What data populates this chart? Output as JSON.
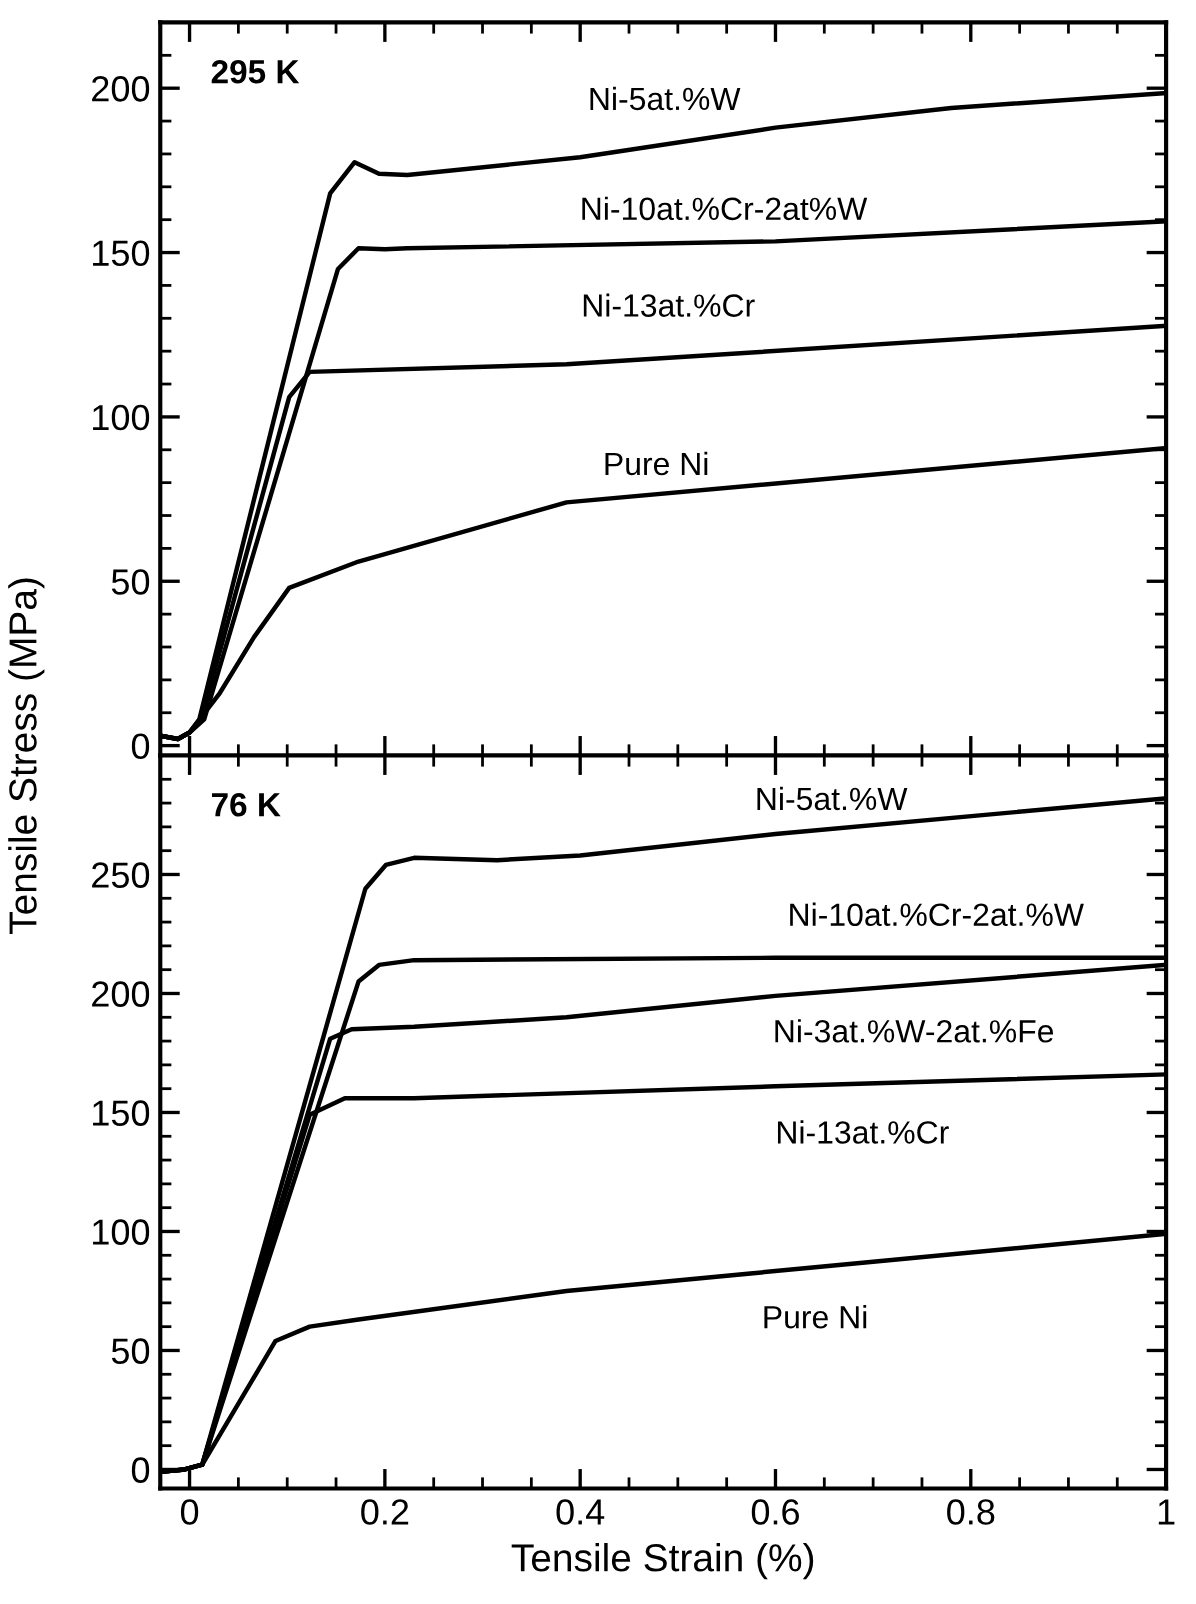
{
  "chart_data": [
    {
      "type": "line",
      "title": "295 K",
      "ylabel": "Tensile Stress (MPa)",
      "xlim": [
        -0.03,
        1
      ],
      "ylim": [
        -3,
        220
      ],
      "xticks": [
        0,
        0.2,
        0.4,
        0.6,
        0.8,
        1
      ],
      "yticks": [
        0,
        50,
        100,
        150,
        200
      ],
      "tick_labels": "y",
      "grid": false,
      "legend": false,
      "marker": "none",
      "line_style": "solid",
      "series": [
        {
          "color": "#000000",
          "x": [
            -0.03,
            -0.012,
            0,
            0.01,
            0.144,
            0.169,
            0.194,
            0.223,
            0.4,
            0.6,
            0.78,
            1
          ],
          "values": [
            3,
            2,
            4,
            8,
            168,
            177.5,
            174,
            173.6,
            179,
            188,
            194,
            198.5
          ]
        },
        {
          "color": "#000000",
          "x": [
            -0.03,
            -0.012,
            0,
            0.015,
            0.152,
            0.173,
            0.2,
            0.223,
            0.6,
            1
          ],
          "values": [
            3,
            2,
            4,
            8,
            145,
            151.3,
            151,
            151.3,
            153.4,
            159.5
          ]
        },
        {
          "color": "#000000",
          "x": [
            -0.03,
            -0.012,
            0,
            0.012,
            0.102,
            0.123,
            0.386,
            1
          ],
          "values": [
            3,
            2,
            4,
            8,
            106,
            113.7,
            116,
            127.7
          ]
        },
        {
          "color": "#000000",
          "x": [
            -0.03,
            -0.012,
            0,
            0.031,
            0.066,
            0.102,
            0.173,
            0.386,
            1
          ],
          "values": [
            3,
            2,
            4,
            16,
            33,
            48,
            56,
            74,
            90.5
          ]
        }
      ],
      "annotations": [
        "Ni-5at.%W",
        "Ni-10at.%Cr-2at%W",
        "Ni-13at.%Cr",
        "Pure Ni"
      ]
    },
    {
      "type": "line",
      "title": "76 K",
      "xlabel": "Tensile Strain (%)",
      "xlim": [
        -0.03,
        1
      ],
      "ylim": [
        -8,
        300
      ],
      "xticks": [
        0,
        0.2,
        0.4,
        0.6,
        0.8,
        1
      ],
      "yticks": [
        0,
        50,
        100,
        150,
        200,
        250
      ],
      "grid": false,
      "legend": false,
      "marker": "none",
      "line_style": "solid",
      "series": [
        {
          "color": "#000000",
          "x": [
            -0.03,
            -0.005,
            0.013,
            0.18,
            0.201,
            0.23,
            0.315,
            0.4,
            0.6,
            1
          ],
          "values": [
            -1,
            0,
            2,
            244,
            254,
            257,
            256,
            258,
            267,
            282
          ]
        },
        {
          "color": "#000000",
          "x": [
            -0.03,
            -0.005,
            0.013,
            0.173,
            0.194,
            0.23,
            0.6,
            1
          ],
          "values": [
            -1,
            0,
            2,
            205,
            212,
            214,
            215,
            215
          ]
        },
        {
          "color": "#000000",
          "x": [
            -0.03,
            -0.005,
            0.013,
            0.144,
            0.166,
            0.23,
            0.386,
            0.6,
            1
          ],
          "values": [
            -1,
            0,
            2,
            181,
            185,
            186,
            190,
            199,
            212
          ]
        },
        {
          "color": "#000000",
          "x": [
            -0.03,
            -0.005,
            0.013,
            0.123,
            0.159,
            0.23,
            0.6,
            1
          ],
          "values": [
            -1,
            0,
            2,
            149,
            156,
            156,
            161,
            166
          ]
        },
        {
          "color": "#000000",
          "x": [
            -0.03,
            -0.005,
            0.013,
            0.088,
            0.123,
            0.173,
            0.386,
            1
          ],
          "values": [
            -1,
            0,
            2,
            54,
            60,
            63,
            75,
            99
          ]
        }
      ],
      "annotations": [
        "Ni-5at.%W",
        "Ni-10at.%Cr-2at.%W",
        "Ni-3at.%W-2at.%Fe",
        "Ni-13at.%Cr",
        "Pure Ni"
      ]
    }
  ]
}
